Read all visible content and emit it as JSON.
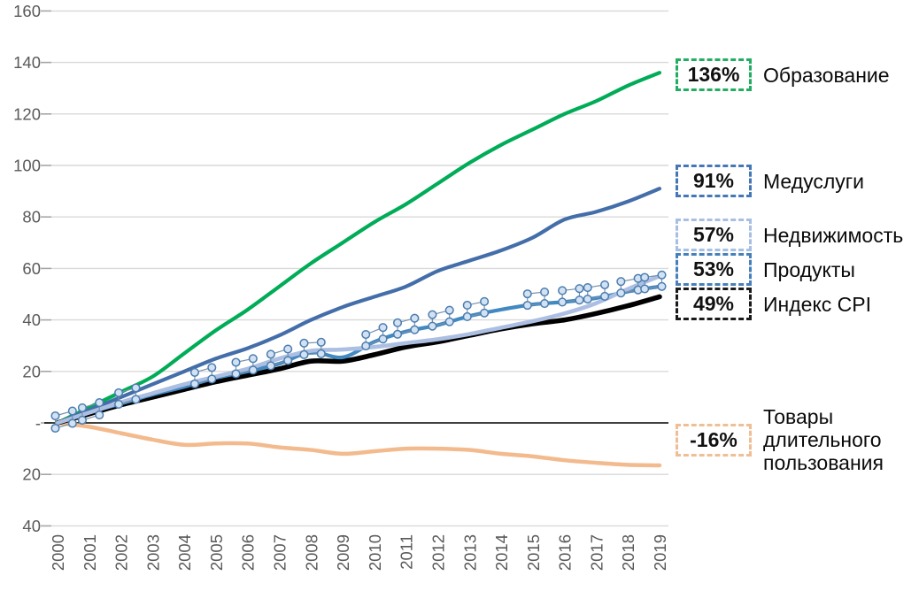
{
  "chart_data": {
    "type": "line",
    "title": "",
    "xlabel": "",
    "ylabel": "",
    "x": [
      2000,
      2001,
      2002,
      2003,
      2004,
      2005,
      2006,
      2007,
      2008,
      2009,
      2010,
      2011,
      2012,
      2013,
      2014,
      2015,
      2016,
      2017,
      2018,
      2019
    ],
    "ylim": [
      -40,
      160
    ],
    "grid": true,
    "legend_position": "right",
    "yticks": [
      {
        "v": 160,
        "label": "160"
      },
      {
        "v": 140,
        "label": "140"
      },
      {
        "v": 120,
        "label": "120"
      },
      {
        "v": 100,
        "label": "100"
      },
      {
        "v": 80,
        "label": "80"
      },
      {
        "v": 60,
        "label": "60"
      },
      {
        "v": 40,
        "label": "40"
      },
      {
        "v": 20,
        "label": "20"
      },
      {
        "v": 0,
        "label": "-"
      },
      {
        "v": -20,
        "label": "20"
      },
      {
        "v": -40,
        "label": "40"
      }
    ],
    "series": [
      {
        "id": "tovary",
        "name": "Товары длительного пользования",
        "final_label": "-16%",
        "color": "#F3BA8D",
        "width": 4.5,
        "values": [
          0,
          -1.5,
          -4,
          -6.5,
          -8.5,
          -8,
          -8,
          -9.5,
          -10.5,
          -12,
          -11,
          -10,
          -10,
          -10.5,
          -12,
          -13,
          -14.5,
          -15.5,
          -16.3,
          -16.5
        ]
      },
      {
        "id": "obrazovanie",
        "name": "Образование",
        "final_label": "136%",
        "color": "#00AC57",
        "width": 4.2,
        "values": [
          0,
          6,
          12,
          18,
          27,
          36,
          44,
          53,
          62,
          70,
          78,
          85,
          93,
          101,
          108,
          114,
          120,
          125,
          131,
          136
        ]
      },
      {
        "id": "meduslugi",
        "name": "Медуслуги",
        "final_label": "91%",
        "color": "#446EA9",
        "width": 4.2,
        "values": [
          0,
          5,
          10,
          15,
          20,
          25,
          29,
          34,
          40,
          45,
          49,
          53,
          59,
          63,
          67,
          72,
          79,
          82,
          86,
          91
        ]
      },
      {
        "id": "cpi",
        "name": "Индекс CPI",
        "final_label": "49%",
        "color": "#000000",
        "width": 5.6,
        "values": [
          0,
          3.5,
          7,
          10,
          13,
          16,
          18.5,
          21,
          24,
          24,
          26.5,
          29.5,
          31.5,
          34,
          36.5,
          38.5,
          40,
          42.5,
          45.5,
          49
        ]
      },
      {
        "id": "produkty",
        "name": "Продукты",
        "final_label": "53%",
        "color": "#4289C2",
        "width": 4.2,
        "values": [
          0,
          4,
          7.5,
          11,
          14,
          17.5,
          20,
          23,
          27.5,
          25.5,
          31.5,
          35.5,
          38,
          41.5,
          44,
          46,
          47,
          48.5,
          51,
          53
        ],
        "marker_clusters": [
          2000.2,
          2001.05,
          2002.2,
          2004.6,
          2005.9,
          2007,
          2008.05,
          2010,
          2011,
          2012.1,
          2013.2,
          2015.1,
          2016.2,
          2017,
          2018.05,
          2018.8
        ],
        "marker_fill": "#D3E2F2",
        "marker_stroke": "#4B7DB0",
        "marker_link": "#7690A9"
      },
      {
        "id": "nedvizhimost",
        "name": "Недвижимость",
        "final_label": "57%",
        "color": "#ACBFE2",
        "width": 4.6,
        "values": [
          0,
          4,
          8,
          11.5,
          15,
          18,
          21,
          25,
          28,
          28.5,
          29.5,
          31,
          32.5,
          34.5,
          37,
          39.5,
          42.5,
          46.5,
          52,
          57
        ]
      }
    ],
    "colors": {
      "gridline": "#D9D9D9",
      "axis_tick": "#A6A6A6",
      "zero_line": "#000000",
      "axis_text": "#595959"
    }
  },
  "legend": {
    "items": [
      {
        "value": "136%",
        "label": "Образование",
        "color": "#21AE63"
      },
      {
        "value": "91%",
        "label": "Медуслуги",
        "color": "#4576B5"
      },
      {
        "value": "57%",
        "label": "Недвижимость",
        "color": "#A8BEE2"
      },
      {
        "value": "53%",
        "label": "Продукты",
        "color": "#4580BB"
      },
      {
        "value": "49%",
        "label": "Индекс CPI",
        "color": "#1A1A1A"
      },
      {
        "value": "-16%",
        "label": "Товары длительного пользования",
        "color": "#F0BE95"
      }
    ]
  }
}
